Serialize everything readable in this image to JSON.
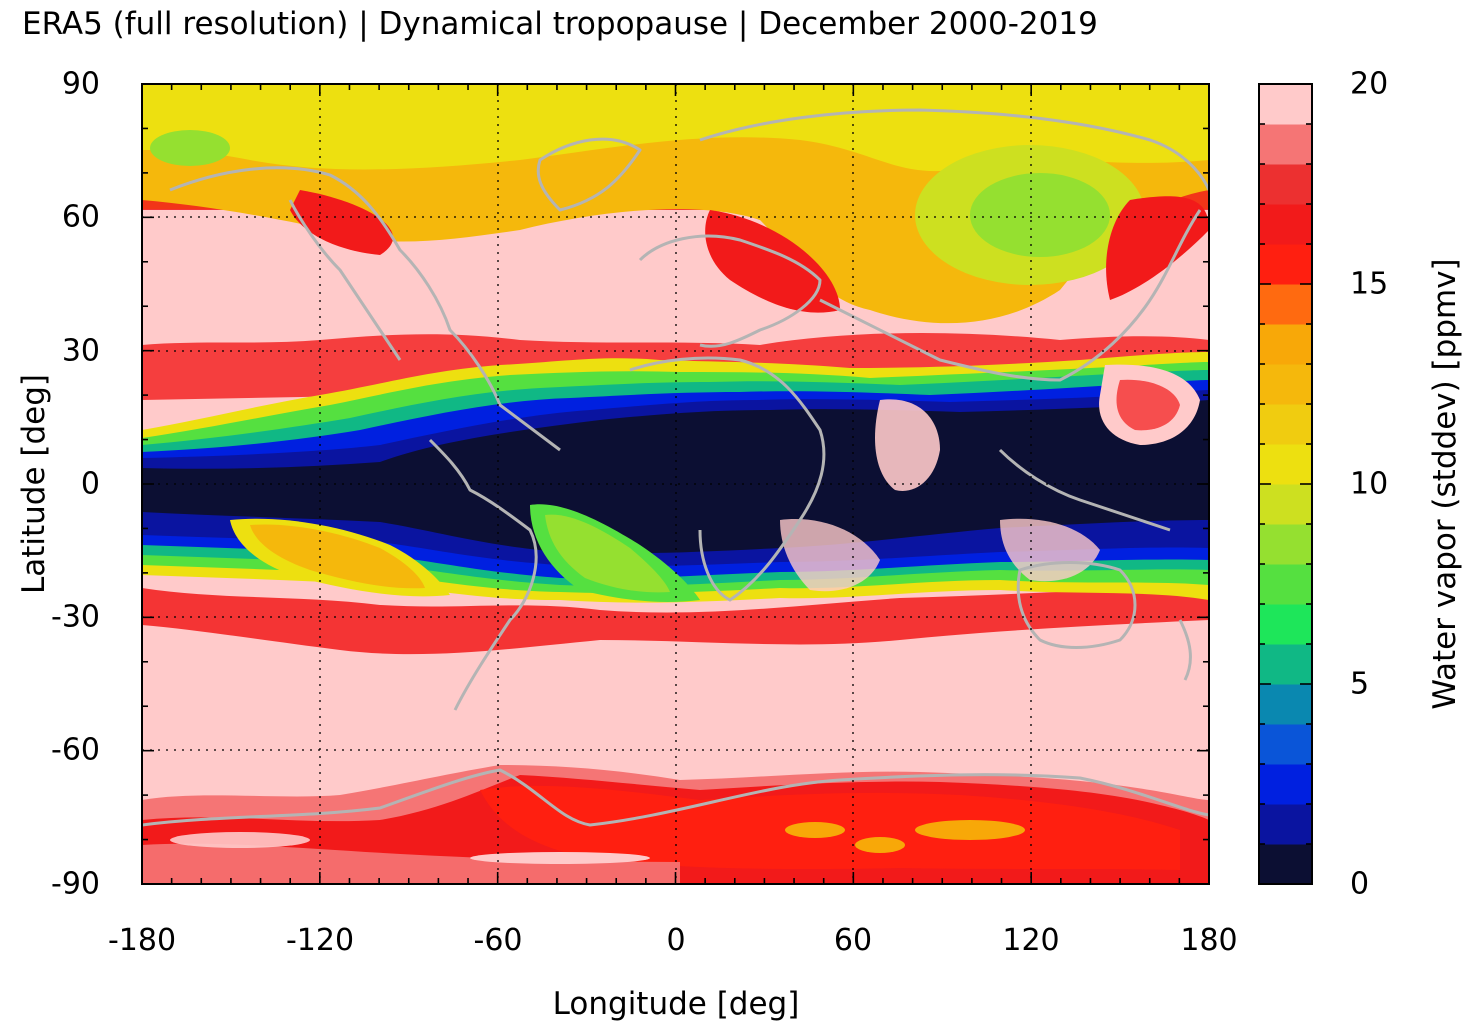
{
  "title": "ERA5 (full resolution) | Dynamical tropopause | December 2000-2019",
  "map": {
    "xlabel": "Longitude [deg]",
    "ylabel": "Latitude [deg]",
    "xlim": [
      -180,
      180
    ],
    "ylim": [
      -90,
      90
    ],
    "xticks": [
      "-180",
      "-120",
      "-60",
      "0",
      "60",
      "120",
      "180"
    ],
    "yticks": [
      "90",
      "60",
      "30",
      "0",
      "-30",
      "-60",
      "-90"
    ],
    "grid": "dotted",
    "coastlines": true
  },
  "colorbar": {
    "label": "Water vapor (stddev) [ppmv]",
    "range": [
      0,
      20
    ],
    "ticks": [
      "20",
      "15",
      "10",
      "5",
      "0"
    ],
    "colors": [
      "#0c0f33",
      "#0a14a0",
      "#0020e0",
      "#0a55d8",
      "#0a88b0",
      "#10b885",
      "#1ee65a",
      "#55e040",
      "#95e030",
      "#cde020",
      "#ede010",
      "#f0cc10",
      "#f5b80c",
      "#f8a808",
      "#ff6a10",
      "#ff1f10",
      "#f21a1a",
      "#ec3030",
      "#f57575",
      "#ffcaca"
    ]
  },
  "colors": {
    "coastline": "#b4b4b4",
    "background_high": "#ffcaca",
    "deep_low": "#0c0f33"
  }
}
